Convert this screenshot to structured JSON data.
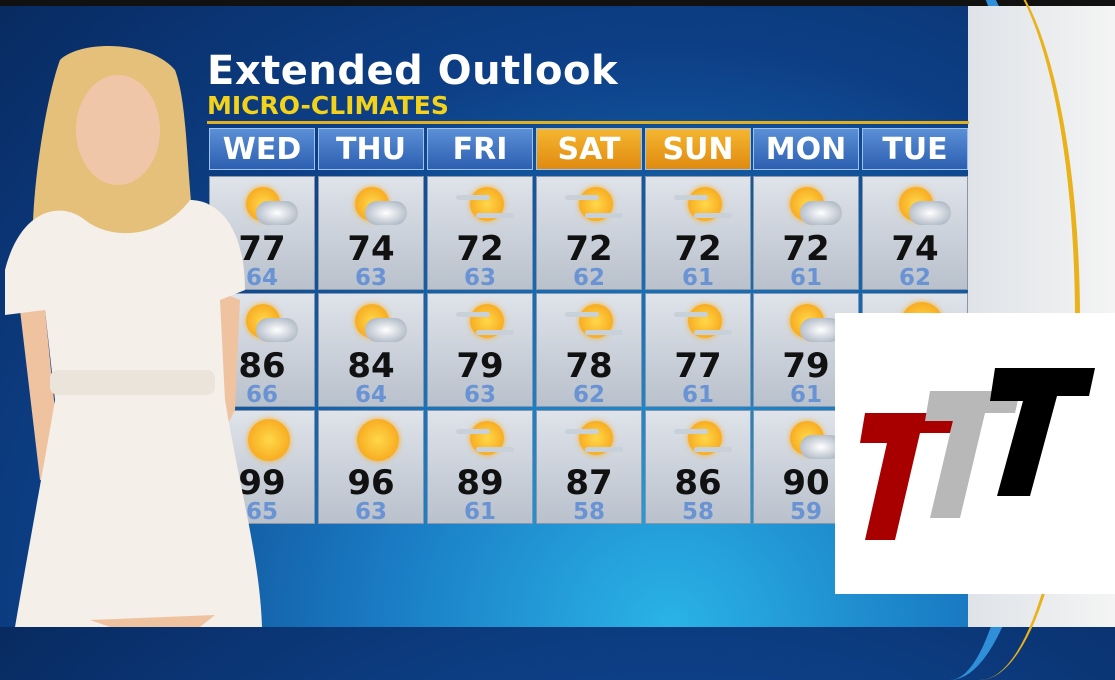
{
  "graphic": {
    "title": "Extended Outlook",
    "subtitle": "MICRO-CLIMATES"
  },
  "colors": {
    "header_day": "#3a6fc0",
    "header_weekend": "#f0a020",
    "high": "#111111",
    "low": "#6a93d4",
    "subtitle": "#f2d21a"
  },
  "days": [
    {
      "label": "WED",
      "weekend": false
    },
    {
      "label": "THU",
      "weekend": false
    },
    {
      "label": "FRI",
      "weekend": false
    },
    {
      "label": "SAT",
      "weekend": true
    },
    {
      "label": "SUN",
      "weekend": true
    },
    {
      "label": "MON",
      "weekend": false
    },
    {
      "label": "TUE",
      "weekend": false
    }
  ],
  "rows": [
    [
      {
        "icon": "partly-cloudy",
        "hi": "77",
        "lo": "64"
      },
      {
        "icon": "partly-cloudy",
        "hi": "74",
        "lo": "63"
      },
      {
        "icon": "hazy-sun",
        "hi": "72",
        "lo": "63"
      },
      {
        "icon": "hazy-sun",
        "hi": "72",
        "lo": "62"
      },
      {
        "icon": "hazy-sun",
        "hi": "72",
        "lo": "61"
      },
      {
        "icon": "partly-cloudy",
        "hi": "72",
        "lo": "61"
      },
      {
        "icon": "partly-cloudy",
        "hi": "74",
        "lo": "62"
      }
    ],
    [
      {
        "icon": "partly-cloudy",
        "hi": "86",
        "lo": "66"
      },
      {
        "icon": "partly-cloudy",
        "hi": "84",
        "lo": "64"
      },
      {
        "icon": "hazy-sun",
        "hi": "79",
        "lo": "63"
      },
      {
        "icon": "hazy-sun",
        "hi": "78",
        "lo": "62"
      },
      {
        "icon": "hazy-sun",
        "hi": "77",
        "lo": "61"
      },
      {
        "icon": "partly-cloudy",
        "hi": "79",
        "lo": "61"
      },
      {
        "icon": "sunny",
        "hi": null,
        "lo": null
      }
    ],
    [
      {
        "icon": "sunny",
        "hi": "99",
        "lo": "65"
      },
      {
        "icon": "sunny",
        "hi": "96",
        "lo": "63"
      },
      {
        "icon": "hazy-sun",
        "hi": "89",
        "lo": "61"
      },
      {
        "icon": "hazy-sun",
        "hi": "87",
        "lo": "58"
      },
      {
        "icon": "hazy-sun",
        "hi": "86",
        "lo": "58"
      },
      {
        "icon": "partly-cloudy",
        "hi": "90",
        "lo": "59"
      },
      {
        "icon": "sunny",
        "hi": null,
        "lo": null
      }
    ]
  ],
  "logo": {
    "text": "TTT",
    "colors": [
      "#a80000",
      "#b8b8b8",
      "#000000"
    ]
  }
}
